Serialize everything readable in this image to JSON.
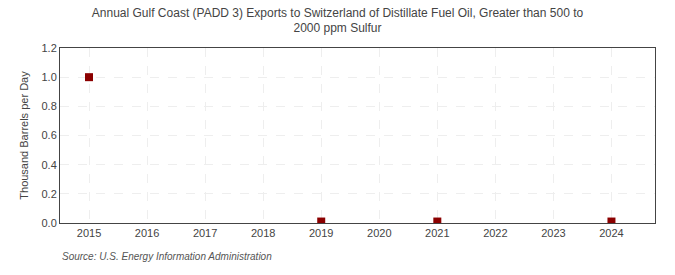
{
  "chart_data": {
    "type": "scatter",
    "title": "Annual Gulf Coast (PADD 3) Exports to Switzerland of Distillate Fuel Oil, Greater than 500 to\n2000 ppm Sulfur",
    "ylabel": "Thousand Barrels per Day",
    "source": "Source: U.S. Energy Information Administration",
    "x": [
      2015,
      2019,
      2021,
      2024
    ],
    "values": [
      1.0,
      0.01,
      0.01,
      0.01
    ],
    "color": "#8b0000",
    "marker": "square",
    "xlim": [
      2014.5,
      2024.75
    ],
    "ylim": [
      0.0,
      1.2
    ],
    "xticks": [
      2015,
      2016,
      2017,
      2018,
      2019,
      2020,
      2021,
      2022,
      2023,
      2024
    ],
    "yticks": [
      {
        "value": 0.0,
        "label": "0.0"
      },
      0.2,
      0.4,
      0.6,
      0.8,
      {
        "value": 1.0,
        "label": "1.0"
      },
      1.2
    ],
    "grid": true
  }
}
